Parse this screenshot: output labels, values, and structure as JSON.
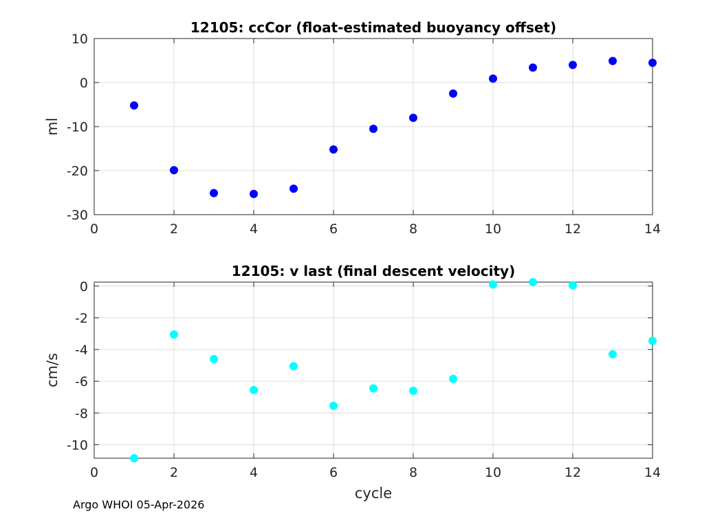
{
  "chart_data": [
    {
      "type": "scatter",
      "title": "12105: ccCor (float-estimated buoyancy offset)",
      "xlabel": "",
      "ylabel": "ml",
      "xlim": [
        0,
        14
      ],
      "ylim": [
        -30,
        10
      ],
      "xticks": [
        0,
        2,
        4,
        6,
        8,
        10,
        12,
        14
      ],
      "yticks": [
        -30,
        -20,
        -10,
        0,
        10
      ],
      "grid": true,
      "marker_color": "#0000ff",
      "x": [
        1,
        2,
        3,
        4,
        5,
        6,
        7,
        8,
        9,
        10,
        11,
        12,
        13,
        14
      ],
      "y": [
        -5.2,
        -19.9,
        -25.1,
        -25.3,
        -24.1,
        -15.2,
        -10.5,
        -8.0,
        -2.5,
        0.9,
        3.4,
        4.0,
        4.9,
        4.5
      ]
    },
    {
      "type": "scatter",
      "title": "12105: v last (final descent velocity)",
      "xlabel": "cycle",
      "ylabel": "cm/s",
      "xlim": [
        0,
        14
      ],
      "ylim": [
        -10.85,
        0.25
      ],
      "xticks": [
        0,
        2,
        4,
        6,
        8,
        10,
        12,
        14
      ],
      "yticks": [
        -10,
        -8,
        -6,
        -4,
        -2,
        0
      ],
      "grid": true,
      "marker_color": "#00ffff",
      "x": [
        1,
        2,
        3,
        4,
        5,
        6,
        7,
        8,
        9,
        10,
        11,
        12,
        13,
        14
      ],
      "y": [
        -10.85,
        -3.05,
        -4.6,
        -6.55,
        -5.05,
        -7.55,
        -6.45,
        -6.6,
        -5.85,
        0.1,
        0.25,
        0.05,
        -4.3,
        -3.45
      ]
    }
  ],
  "footer": "Argo WHOI 05-Apr-2026"
}
